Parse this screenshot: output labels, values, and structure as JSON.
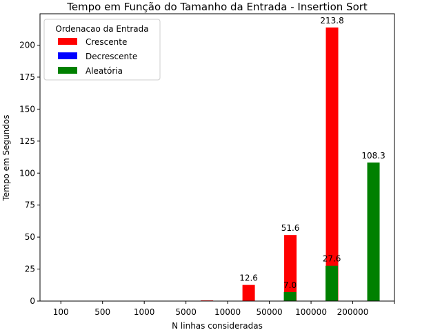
{
  "chart_data": {
    "type": "bar",
    "title": "Tempo em Função do Tamanho da Entrada - Insertion Sort",
    "xlabel": "N linhas consideradas",
    "ylabel": "Tempo em Segundos",
    "ylim": [
      0,
      224.5
    ],
    "yticks": [
      0,
      25,
      50,
      75,
      100,
      125,
      150,
      175,
      200
    ],
    "categories": [
      "100",
      "500",
      "1000",
      "5000",
      "10000",
      "50000",
      "100000",
      "200000"
    ],
    "legend": {
      "title": "Ordenacao da Entrada",
      "placement": "top-left"
    },
    "series": [
      {
        "name": "Crescente",
        "color": "#ff0000",
        "values": [
          0.0,
          0.0,
          0.0,
          0.1,
          0.5,
          12.6,
          51.6,
          213.8
        ],
        "labels": [
          "",
          "",
          "",
          "",
          "",
          "12.6",
          "51.6",
          "213.8"
        ]
      },
      {
        "name": "Decrescente",
        "color": "#0000ff",
        "values": [
          0,
          0,
          0,
          0,
          0,
          0,
          0,
          0
        ],
        "labels": [
          "",
          "",
          "",
          "",
          "",
          "",
          "",
          ""
        ]
      },
      {
        "name": "Aleatória",
        "color": "#008000",
        "values": [
          0.0,
          0.0,
          0.0,
          0.0,
          0.0,
          7.0,
          27.6,
          108.3
        ],
        "labels": [
          "",
          "",
          "",
          "",
          "",
          "7.0",
          "27.6",
          "108.3"
        ]
      }
    ],
    "grid": false
  }
}
